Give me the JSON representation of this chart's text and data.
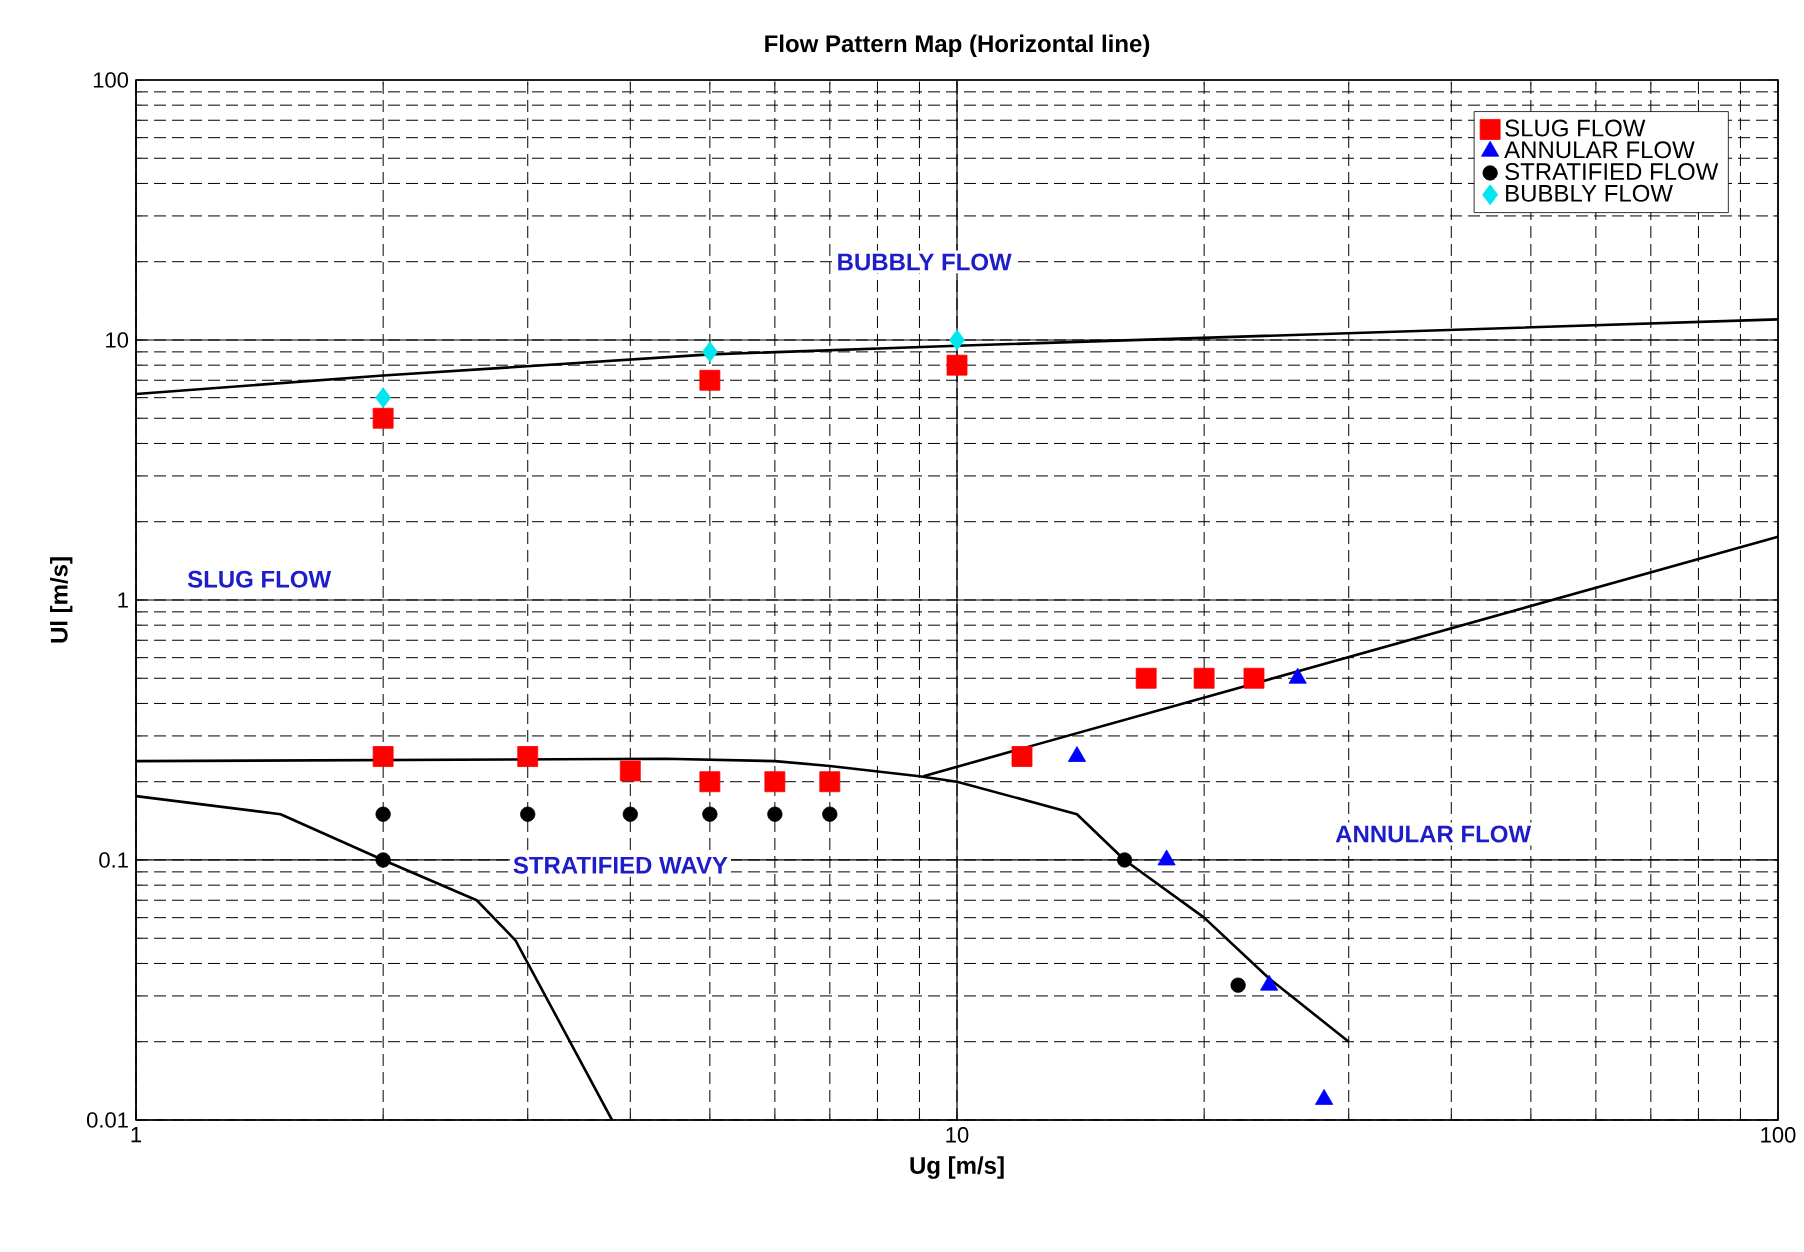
{
  "chart_data": {
    "type": "scatter",
    "title": "Flow Pattern Map (Horizontal line)",
    "xlabel": "Ug [m/s]",
    "ylabel": "Ul [m/s]",
    "log": "xy",
    "grid": true,
    "legend": "top right",
    "xlim": [
      1,
      100
    ],
    "xticks": [
      1,
      10,
      100
    ],
    "ylim": [
      0.01,
      100
    ],
    "yticks": [
      0.01,
      0.1,
      1,
      10,
      100
    ],
    "series": [
      {
        "name": "SLUG FLOW",
        "color": "#ff0000",
        "marker": "square",
        "x": [
          2,
          5,
          10,
          2,
          3,
          4,
          5,
          6,
          7,
          12,
          17,
          20,
          23
        ],
        "values": [
          5,
          7,
          8,
          0.25,
          0.25,
          0.22,
          0.2,
          0.2,
          0.2,
          0.25,
          0.5,
          0.5,
          0.5
        ]
      },
      {
        "name": "ANNULAR FLOW",
        "color": "#0000ff",
        "marker": "triangle",
        "x": [
          14,
          26,
          18,
          24,
          28
        ],
        "values": [
          0.25,
          0.5,
          0.1,
          0.033,
          0.012
        ]
      },
      {
        "name": "STRATIFIED FLOW",
        "color": "#000000",
        "marker": "circle",
        "x": [
          2,
          3,
          4,
          5,
          6,
          7,
          2,
          16,
          22
        ],
        "values": [
          0.15,
          0.15,
          0.15,
          0.15,
          0.15,
          0.15,
          0.1,
          0.1,
          0.033
        ]
      },
      {
        "name": "BUBBLY FLOW",
        "color": "#00e5ee",
        "marker": "diamond",
        "x": [
          2,
          5,
          10
        ],
        "values": [
          6,
          9,
          10
        ]
      },
      {
        "type": "line",
        "color": "#000000",
        "marker": "none",
        "x": [
          1,
          2,
          5,
          10,
          100
        ],
        "values": [
          6.2,
          7.3,
          8.8,
          9.5,
          12
        ]
      },
      {
        "type": "line",
        "color": "#000000",
        "marker": "none",
        "x": [
          1,
          4.4,
          6,
          7,
          9,
          10,
          14,
          16,
          20,
          24,
          30
        ],
        "values": [
          0.24,
          0.245,
          0.24,
          0.23,
          0.21,
          0.2,
          0.15,
          0.1,
          0.06,
          0.035,
          0.02
        ]
      },
      {
        "type": "line",
        "color": "#000000",
        "marker": "none",
        "x": [
          9.1,
          100
        ],
        "values": [
          0.21,
          1.75
        ]
      },
      {
        "type": "line",
        "color": "#000000",
        "marker": "none",
        "x": [
          1,
          1.5,
          2,
          2.6,
          2.9,
          3.8
        ],
        "values": [
          0.176,
          0.15,
          0.1,
          0.07,
          0.049,
          0.01
        ]
      }
    ],
    "annotations": [
      "BUBBLY FLOW",
      "SLUG FLOW",
      "STRATIFIED WAVY",
      "ANNULAR FLOW"
    ]
  }
}
